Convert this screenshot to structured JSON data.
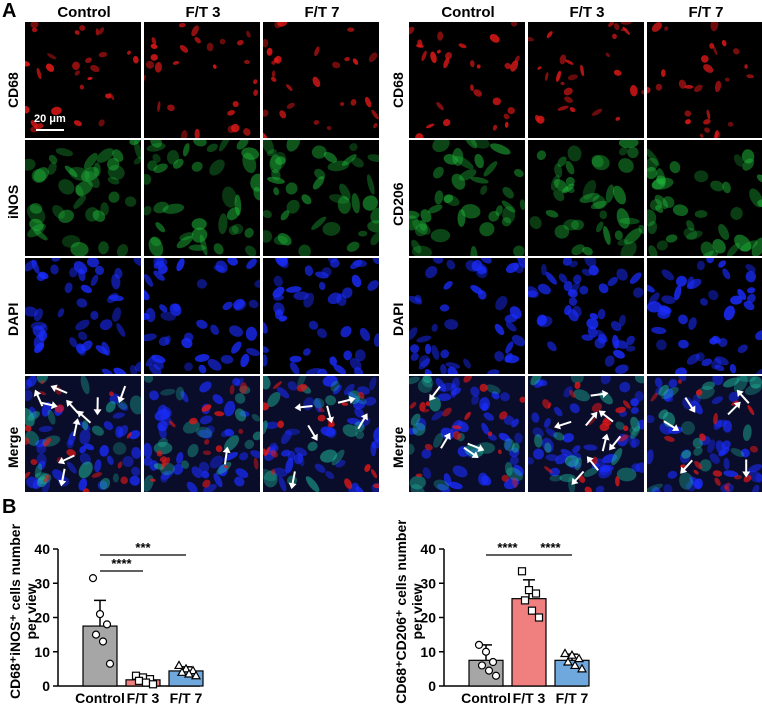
{
  "panel_a": {
    "letter": "A",
    "left_block": {
      "columns": [
        "Control",
        "F/T 3",
        "F/T 7"
      ],
      "rows": [
        "CD68",
        "iNOS",
        "DAPI",
        "Merge"
      ]
    },
    "right_block": {
      "columns": [
        "Control",
        "F/T 3",
        "F/T 7"
      ],
      "rows": [
        "CD68",
        "CD206",
        "DAPI",
        "Merge"
      ]
    },
    "scale_bar": "20 μm",
    "colors": {
      "cd68": "#e01818",
      "inos": "#1fb83a",
      "cd206": "#1fb83a",
      "dapi": "#1a2cff",
      "arrow": "#ffffff"
    }
  },
  "panel_b": {
    "letter": "B"
  },
  "chart_data": [
    {
      "type": "bar",
      "ylabel": "CD68⁺iNOS⁺ cells number per view",
      "categories": [
        "Control",
        "F/T 3",
        "F/T 7"
      ],
      "values": [
        17.5,
        1.8,
        4.4
      ],
      "errors": [
        7.5,
        1.0,
        1.2
      ],
      "bar_colors": [
        "#a6a6a6",
        "#f08080",
        "#6fa8dc"
      ],
      "markers": [
        "circle",
        "square",
        "triangle"
      ],
      "points": [
        [
          31.5,
          21,
          18,
          15,
          13,
          6.5
        ],
        [
          3,
          2.5,
          2,
          1.5,
          1,
          0.5
        ],
        [
          6,
          5,
          4.5,
          4,
          3.5,
          3
        ]
      ],
      "ylim": [
        0,
        40
      ],
      "yticks": [
        0,
        10,
        20,
        30,
        40
      ],
      "significance": [
        {
          "from": 0,
          "to": 1,
          "label": "****"
        },
        {
          "from": 0,
          "to": 2,
          "label": "***"
        }
      ]
    },
    {
      "type": "bar",
      "ylabel": "CD68⁺CD206⁺ cells number per view",
      "categories": [
        "Control",
        "F/T 3",
        "F/T 7"
      ],
      "values": [
        7.5,
        25.5,
        7.5
      ],
      "errors": [
        4.5,
        5.5,
        1.8
      ],
      "bar_colors": [
        "#a6a6a6",
        "#f08080",
        "#6fa8dc"
      ],
      "markers": [
        "circle",
        "square",
        "triangle"
      ],
      "points": [
        [
          12,
          10,
          7,
          6,
          4.5,
          3
        ],
        [
          33.5,
          28,
          27,
          25,
          22,
          20
        ],
        [
          9.5,
          9,
          8,
          7,
          6,
          5
        ]
      ],
      "ylim": [
        0,
        40
      ],
      "yticks": [
        0,
        10,
        20,
        30,
        40
      ],
      "significance": [
        {
          "from": 0,
          "to": 1,
          "label": "****"
        },
        {
          "from": 1,
          "to": 2,
          "label": "****"
        }
      ]
    }
  ]
}
